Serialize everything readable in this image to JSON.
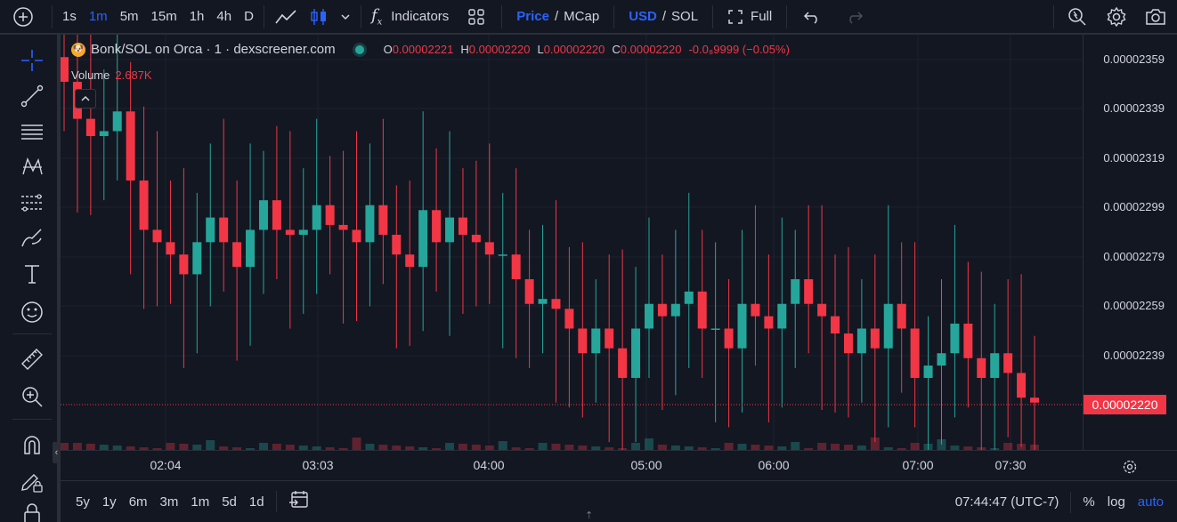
{
  "toolbar": {
    "intervals": [
      "1s",
      "1m",
      "5m",
      "15m",
      "1h",
      "4h",
      "D"
    ],
    "active_interval": "1m",
    "indicators_label": "Indicators",
    "price_label": "Price",
    "mcap_label": "MCap",
    "usd_label": "USD",
    "sol_label": "SOL",
    "slash": "/",
    "full_label": "Full"
  },
  "legend": {
    "title": "Bonk/SOL on Orca · 1 · dexscreener.com",
    "o_key": "O",
    "o_val": "0.00002221",
    "h_key": "H",
    "h_val": "0.00002220",
    "l_key": "L",
    "l_val": "0.00002220",
    "c_key": "C",
    "c_val": "0.00002220",
    "change": "-0.0₈9999 (−0.05%)",
    "volume_label": "Volume",
    "volume_value": "2.687K"
  },
  "price_scale": {
    "ticks": [
      "0.00002359",
      "0.00002339",
      "0.00002319",
      "0.00002299",
      "0.00002279",
      "0.00002259",
      "0.00002239"
    ],
    "last_price": "0.00002220"
  },
  "time_axis": {
    "labels": [
      "02:04",
      "03:03",
      "04:00",
      "05:00",
      "06:00",
      "07:00",
      "07:30"
    ]
  },
  "bottom_bar": {
    "ranges": [
      "5y",
      "1y",
      "6m",
      "3m",
      "1m",
      "5d",
      "1d"
    ],
    "clock": "07:44:47 (UTC-7)",
    "percent": "%",
    "log": "log",
    "auto": "auto"
  },
  "colors": {
    "up": "#26a69a",
    "down": "#f23645",
    "background": "#131722",
    "accent": "#2962ff"
  },
  "chart_data": {
    "type": "candlestick",
    "title": "Bonk/SOL on Orca · 1 · dexscreener.com",
    "y_range": [
      2.21e-05,
      2.36e-05
    ],
    "x_ticks": [
      "02:04",
      "03:03",
      "04:00",
      "05:00",
      "06:00",
      "07:00",
      "07:30"
    ],
    "series": [
      {
        "name": "price",
        "closes": [
          2.35e-05,
          2.335e-05,
          2.328e-05,
          2.33e-05,
          2.338e-05,
          2.31e-05,
          2.29e-05,
          2.285e-05,
          2.28e-05,
          2.272e-05,
          2.285e-05,
          2.295e-05,
          2.285e-05,
          2.275e-05,
          2.29e-05,
          2.302e-05,
          2.29e-05,
          2.288e-05,
          2.29e-05,
          2.3e-05,
          2.292e-05,
          2.29e-05,
          2.285e-05,
          2.3e-05,
          2.288e-05,
          2.28e-05,
          2.275e-05,
          2.298e-05,
          2.285e-05,
          2.295e-05,
          2.288e-05,
          2.285e-05,
          2.28e-05,
          2.28e-05,
          2.27e-05,
          2.26e-05,
          2.262e-05,
          2.258e-05,
          2.25e-05,
          2.24e-05,
          2.25e-05,
          2.242e-05,
          2.23e-05,
          2.25e-05,
          2.26e-05,
          2.255e-05,
          2.26e-05,
          2.265e-05,
          2.25e-05,
          2.25e-05,
          2.242e-05,
          2.26e-05,
          2.255e-05,
          2.25e-05,
          2.26e-05,
          2.27e-05,
          2.26e-05,
          2.255e-05,
          2.248e-05,
          2.24e-05,
          2.25e-05,
          2.242e-05,
          2.26e-05,
          2.25e-05,
          2.23e-05,
          2.235e-05,
          2.24e-05,
          2.252e-05,
          2.238e-05,
          2.23e-05,
          2.24e-05,
          2.232e-05,
          2.222e-05,
          2.22e-05
        ]
      }
    ],
    "volume": "2.687K"
  }
}
